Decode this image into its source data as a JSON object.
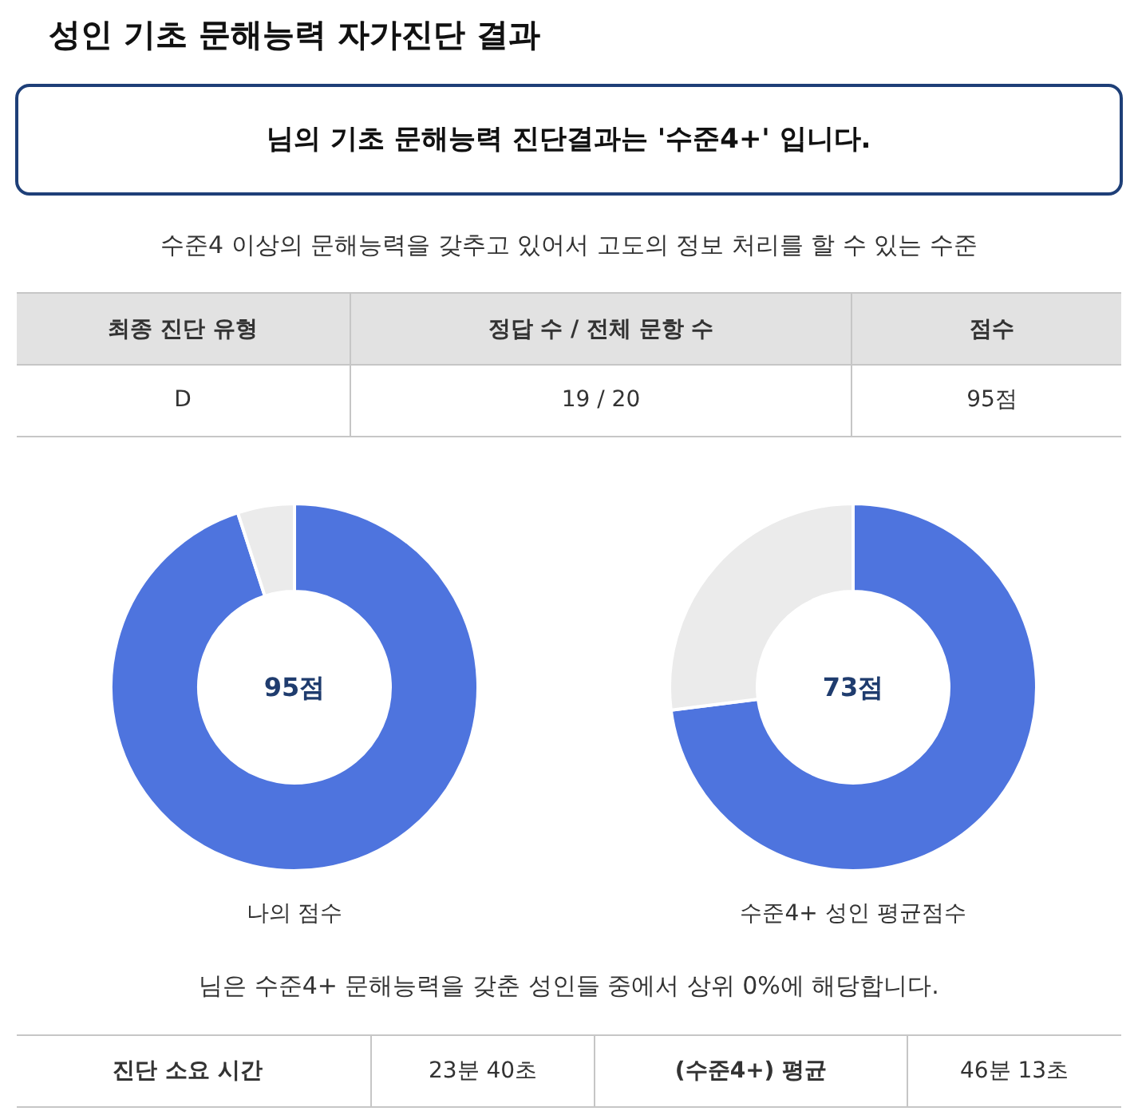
{
  "chart_data": [
    {
      "type": "other",
      "title": "성인 기초 문해능력 자가진단 결과",
      "annotations": [
        "님의 기초 문해능력 진단결과는 '수준4+' 입니다.",
        "수준4 이상의 문해능력을 갖추고 있어서 고도의 정보 처리를 할 수 있는 수준",
        "최종 진단 유형",
        "정답 수 / 전체 문항 수",
        "점수",
        "D",
        "19 / 20",
        "95점"
      ]
    },
    {
      "type": "donut",
      "title": "나의 점수",
      "categories": [
        null,
        null
      ],
      "values": [
        95,
        5
      ],
      "colors": [
        "#4e74de",
        "#ebebeb"
      ],
      "annotations": [
        "95점"
      ]
    },
    {
      "type": "donut",
      "title": "수준4+ 성인 평균점수",
      "categories": [
        null,
        null
      ],
      "values": [
        73,
        27
      ],
      "colors": [
        "#4e74de",
        "#ebebeb"
      ],
      "annotations": [
        "73점"
      ]
    },
    {
      "type": "other",
      "annotations": [
        "님은 수준4+ 문해능력을 갖춘 성인들 중에서 상위 0%에 해당합니다.",
        "진단 소요 시간",
        "23분 40초",
        "(수준4+) 평균",
        "46분 13초"
      ]
    }
  ]
}
